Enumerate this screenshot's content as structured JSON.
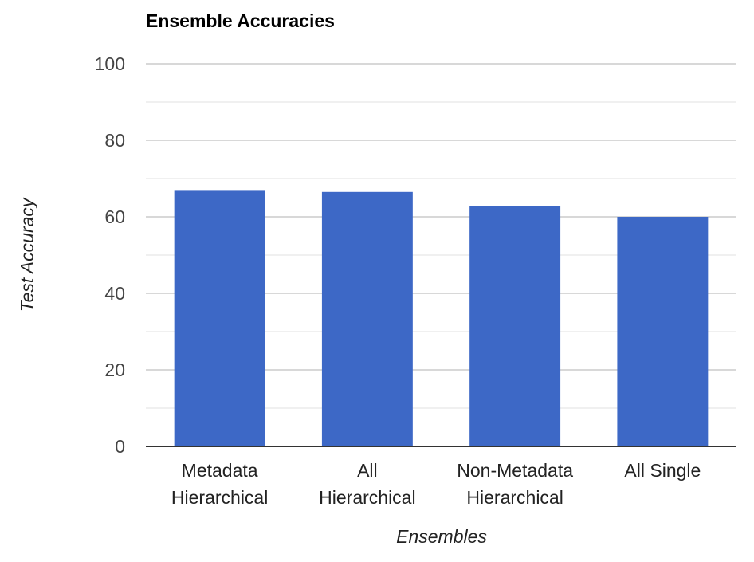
{
  "chart_data": {
    "type": "bar",
    "title": "Ensemble Accuracies",
    "xlabel": "Ensembles",
    "ylabel": "Test Accuracy",
    "categories": [
      [
        "Metadata",
        "Hierarchical"
      ],
      [
        "All",
        "Hierarchical"
      ],
      [
        "Non-Metadata",
        "Hierarchical"
      ],
      [
        "All Single"
      ]
    ],
    "values": [
      67,
      66.5,
      62.8,
      60
    ],
    "ylim": [
      0,
      100
    ],
    "yticks": [
      0,
      20,
      40,
      60,
      80,
      100
    ],
    "grid": true,
    "minor_grid": true,
    "legend": "none"
  },
  "colors": {
    "bar": "#3d68c6",
    "major_grid": "#cccccc",
    "minor_grid": "#ebebeb",
    "baseline": "#333333"
  }
}
